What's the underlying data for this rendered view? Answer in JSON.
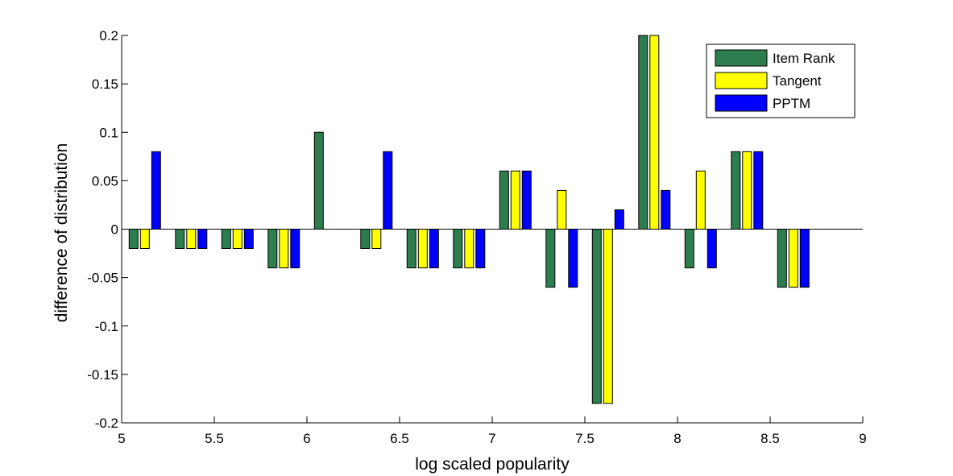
{
  "chart_data": {
    "type": "bar",
    "title": "",
    "xlabel": "log scaled popularity",
    "ylabel": "difference of distribution",
    "xlim": [
      5,
      9
    ],
    "ylim": [
      -0.2,
      0.2
    ],
    "xticks": [
      "5",
      "5.5",
      "6",
      "6.5",
      "7",
      "7.5",
      "8",
      "8.5",
      "9"
    ],
    "yticks": [
      "-0.2",
      "-0.15",
      "-0.1",
      "-0.05",
      "0",
      "0.05",
      "0.1",
      "0.15",
      "0.2"
    ],
    "x": [
      5.125,
      5.375,
      5.625,
      5.875,
      6.125,
      6.375,
      6.625,
      6.875,
      7.125,
      7.375,
      7.625,
      7.875,
      8.125,
      8.375,
      8.625
    ],
    "series": [
      {
        "name": "Item Rank",
        "color": "#2e7d4f",
        "values": [
          -0.02,
          -0.02,
          -0.02,
          -0.04,
          0.1,
          -0.02,
          -0.04,
          -0.04,
          0.06,
          -0.06,
          -0.18,
          0.2,
          -0.04,
          0.08,
          -0.06
        ]
      },
      {
        "name": "Tangent",
        "color": "#ffff00",
        "values": [
          -0.02,
          -0.02,
          -0.02,
          -0.04,
          0.0,
          -0.02,
          -0.04,
          -0.04,
          0.06,
          0.04,
          -0.18,
          0.2,
          0.06,
          0.08,
          -0.06
        ]
      },
      {
        "name": "PPTM",
        "color": "#0000ff",
        "values": [
          0.08,
          -0.02,
          -0.02,
          -0.04,
          0.0,
          0.08,
          -0.04,
          -0.04,
          0.06,
          -0.06,
          0.02,
          0.04,
          -0.04,
          0.08,
          -0.06
        ]
      }
    ],
    "grid": false,
    "legend_position": "top-right"
  }
}
